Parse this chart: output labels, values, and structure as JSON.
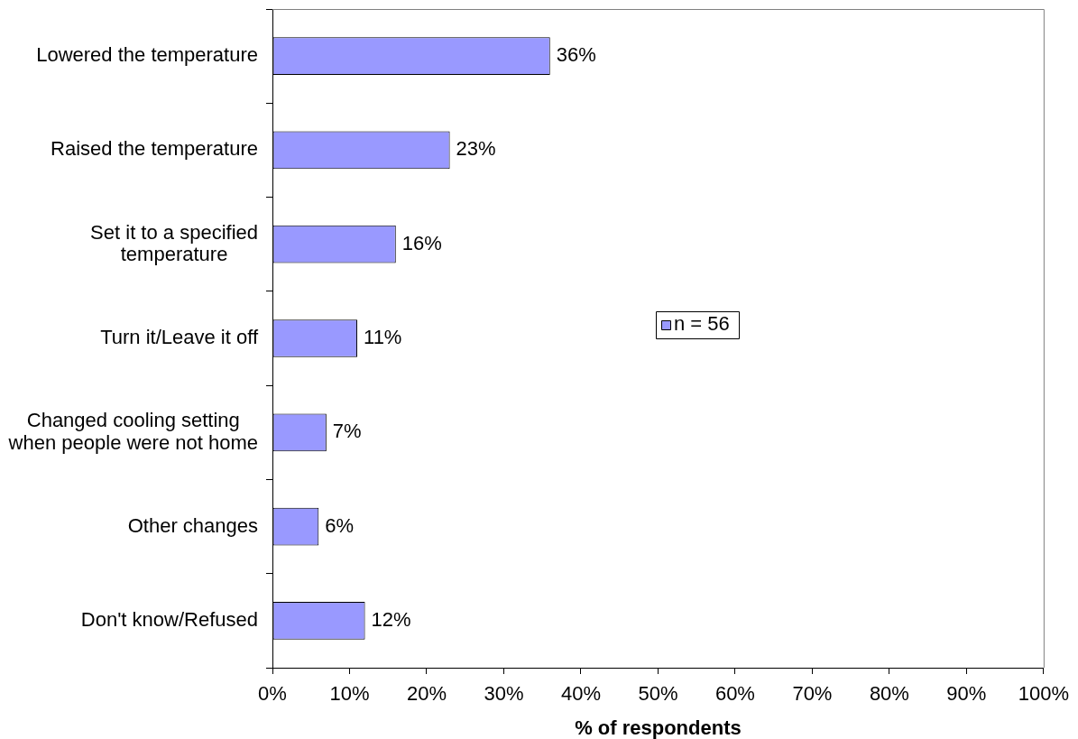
{
  "chart_data": {
    "type": "bar",
    "orientation": "horizontal",
    "categories": [
      "Lowered the temperature",
      "Raised the temperature",
      "Set it to a specified temperature",
      "Turn it/Leave it off",
      "Changed cooling setting when people were not home",
      "Other changes",
      "Don't know/Refused"
    ],
    "series": [
      {
        "name": "n = 56",
        "color": "#9999ff",
        "values": [
          36,
          23,
          16,
          11,
          7,
          6,
          12
        ],
        "value_labels": [
          "36%",
          "23%",
          "16%",
          "11%",
          "7%",
          "6%",
          "12%"
        ]
      }
    ],
    "xlabel": "% of respondents",
    "xlim": [
      0,
      100
    ],
    "xticks": [
      {
        "value": 0,
        "label": "0%"
      },
      {
        "value": 10,
        "label": "10%"
      },
      {
        "value": 20,
        "label": "20%"
      },
      {
        "value": 30,
        "label": "30%"
      },
      {
        "value": 40,
        "label": "40%"
      },
      {
        "value": 50,
        "label": "50%"
      },
      {
        "value": 60,
        "label": "60%"
      },
      {
        "value": 70,
        "label": "70%"
      },
      {
        "value": 80,
        "label": "80%"
      },
      {
        "value": 90,
        "label": "90%"
      },
      {
        "value": 100,
        "label": "100%"
      }
    ],
    "legend": "right"
  }
}
